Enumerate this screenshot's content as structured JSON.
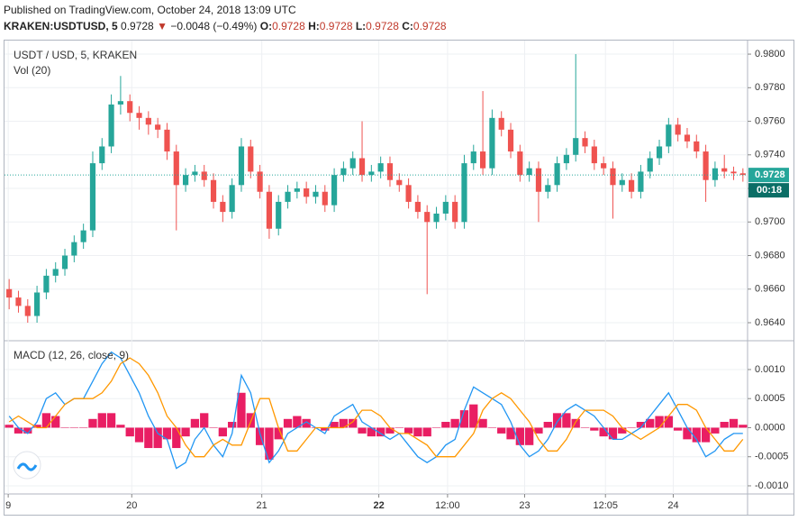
{
  "header": {
    "published": "Published on TradingView.com, October 24, 2018 13:09 UTC",
    "symbol": "KRAKEN:USDTUSD, 5",
    "last": "0.9728",
    "change": "−0.0048 (−0.49%)",
    "ohlc": [
      {
        "label": "O:",
        "value": "0.9728"
      },
      {
        "label": "H:",
        "value": "0.9728"
      },
      {
        "label": "L:",
        "value": "0.9728"
      },
      {
        "label": "C:",
        "value": "0.9728"
      }
    ]
  },
  "chart_data": [
    {
      "type": "candlestick",
      "title": "USDT / USD, 5, KRAKEN",
      "subtitle": "Vol (20)",
      "up_color": "#26a69a",
      "down_color": "#ef5350",
      "xlim": [
        0,
        80
      ],
      "ylim": [
        0.96298,
        0.98054
      ],
      "yticks": [
        {
          "value": 0.98,
          "label": "0.9800"
        },
        {
          "value": 0.978,
          "label": "0.9780"
        },
        {
          "value": 0.976,
          "label": "0.9760"
        },
        {
          "value": 0.974,
          "label": "0.9740"
        },
        {
          "value": 0.972,
          "label": "0.9720"
        },
        {
          "value": 0.97,
          "label": "0.9700"
        },
        {
          "value": 0.968,
          "label": "0.9680"
        },
        {
          "value": 0.966,
          "label": "0.9660"
        },
        {
          "value": 0.964,
          "label": "0.9640"
        }
      ],
      "grid": true,
      "last_price": 0.9728,
      "countdown": "00:18",
      "open": [
        0.966,
        0.9655,
        0.965,
        0.9644,
        0.9658,
        0.9668,
        0.9672,
        0.968,
        0.9688,
        0.9695,
        0.9735,
        0.9745,
        0.977,
        0.9772,
        0.9765,
        0.9762,
        0.9758,
        0.9755,
        0.9742,
        0.9722,
        0.9728,
        0.973,
        0.9725,
        0.9712,
        0.9706,
        0.9722,
        0.9745,
        0.973,
        0.9718,
        0.9696,
        0.9712,
        0.9718,
        0.972,
        0.9715,
        0.9718,
        0.971,
        0.9728,
        0.9732,
        0.9738,
        0.9728,
        0.973,
        0.9735,
        0.9725,
        0.9722,
        0.9712,
        0.9706,
        0.97,
        0.9705,
        0.9712,
        0.97,
        0.9735,
        0.9742,
        0.9732,
        0.9762,
        0.9755,
        0.9742,
        0.9728,
        0.9732,
        0.9718,
        0.9722,
        0.9735,
        0.974,
        0.975,
        0.9745,
        0.9735,
        0.9732,
        0.9722,
        0.9725,
        0.9718,
        0.973,
        0.9738,
        0.9745,
        0.9758,
        0.9752,
        0.9748,
        0.9742,
        0.9725,
        0.9732,
        0.973,
        0.9729
      ],
      "high": [
        0.9666,
        0.9659,
        0.9654,
        0.9662,
        0.9672,
        0.9676,
        0.9684,
        0.9692,
        0.9699,
        0.9742,
        0.975,
        0.9776,
        0.9787,
        0.9776,
        0.9769,
        0.9766,
        0.9762,
        0.9759,
        0.9746,
        0.9732,
        0.9734,
        0.9734,
        0.9729,
        0.9716,
        0.9726,
        0.975,
        0.9749,
        0.9734,
        0.9722,
        0.9716,
        0.9722,
        0.9724,
        0.9724,
        0.9722,
        0.9722,
        0.9732,
        0.9736,
        0.9742,
        0.976,
        0.9734,
        0.9739,
        0.9739,
        0.9729,
        0.9726,
        0.9716,
        0.971,
        0.9709,
        0.9716,
        0.9716,
        0.974,
        0.9746,
        0.9778,
        0.9767,
        0.9766,
        0.9759,
        0.9746,
        0.9736,
        0.9736,
        0.9726,
        0.9739,
        0.9744,
        0.98,
        0.9754,
        0.9749,
        0.9739,
        0.9736,
        0.9729,
        0.9729,
        0.9734,
        0.9742,
        0.9749,
        0.9762,
        0.9762,
        0.9756,
        0.9752,
        0.9746,
        0.9736,
        0.974,
        0.9733,
        0.9732
      ],
      "low": [
        0.9648,
        0.9646,
        0.964,
        0.964,
        0.9654,
        0.9664,
        0.9668,
        0.9676,
        0.9684,
        0.9691,
        0.9731,
        0.9741,
        0.9764,
        0.976,
        0.9755,
        0.9752,
        0.975,
        0.9737,
        0.9695,
        0.9718,
        0.9724,
        0.9721,
        0.9708,
        0.97,
        0.9702,
        0.9718,
        0.9726,
        0.9714,
        0.969,
        0.9692,
        0.9708,
        0.9714,
        0.9711,
        0.9711,
        0.9706,
        0.9706,
        0.9724,
        0.9728,
        0.9724,
        0.9724,
        0.9726,
        0.9721,
        0.9718,
        0.9708,
        0.9702,
        0.9657,
        0.9696,
        0.9701,
        0.9696,
        0.9696,
        0.9731,
        0.9728,
        0.9728,
        0.9751,
        0.9738,
        0.9724,
        0.9724,
        0.97,
        0.9714,
        0.9718,
        0.9731,
        0.9736,
        0.9741,
        0.9731,
        0.9728,
        0.9702,
        0.9718,
        0.9714,
        0.9714,
        0.9726,
        0.9734,
        0.9741,
        0.9748,
        0.9744,
        0.9738,
        0.9712,
        0.9721,
        0.9726,
        0.9725,
        0.9724
      ],
      "close": [
        0.9655,
        0.965,
        0.9644,
        0.9658,
        0.9668,
        0.9672,
        0.968,
        0.9688,
        0.9695,
        0.9735,
        0.9745,
        0.977,
        0.9772,
        0.9765,
        0.9762,
        0.9758,
        0.9755,
        0.9742,
        0.9722,
        0.9728,
        0.973,
        0.9725,
        0.9712,
        0.9706,
        0.9722,
        0.9745,
        0.973,
        0.9718,
        0.9696,
        0.9712,
        0.9718,
        0.972,
        0.9715,
        0.9718,
        0.971,
        0.9728,
        0.9732,
        0.9738,
        0.9728,
        0.973,
        0.9735,
        0.9725,
        0.9722,
        0.9712,
        0.9706,
        0.97,
        0.9705,
        0.9712,
        0.97,
        0.9735,
        0.9742,
        0.9732,
        0.9762,
        0.9755,
        0.9742,
        0.9728,
        0.9732,
        0.9718,
        0.9722,
        0.9735,
        0.974,
        0.975,
        0.9745,
        0.9735,
        0.9732,
        0.9722,
        0.9725,
        0.9718,
        0.973,
        0.9738,
        0.9745,
        0.9758,
        0.9752,
        0.9748,
        0.9742,
        0.9725,
        0.9732,
        0.973,
        0.9729,
        0.9728
      ]
    },
    {
      "type": "macd",
      "title": "MACD (12, 26, close, 9)",
      "xlim": [
        0,
        80
      ],
      "ylim": [
        -0.00114,
        0.00148
      ],
      "yticks": [
        {
          "value": 0.001,
          "label": "0.0010"
        },
        {
          "value": 0.0005,
          "label": "0.0005"
        },
        {
          "value": 0,
          "label": "0.0000"
        },
        {
          "value": -0.0005,
          "label": "-0.0005"
        },
        {
          "value": -0.001,
          "label": "-0.0010"
        }
      ],
      "xticks": [
        {
          "value": 0.4,
          "label": "9"
        },
        {
          "value": 13.7,
          "label": "20"
        },
        {
          "value": 27.7,
          "label": "21"
        },
        {
          "value": 40.3,
          "label": "22"
        },
        {
          "value": 47.7,
          "label": "12:00"
        },
        {
          "value": 56,
          "label": "23"
        },
        {
          "value": 64.7,
          "label": "12:05"
        },
        {
          "value": 72,
          "label": "24"
        }
      ],
      "grid": true,
      "series": [
        {
          "color": "#2196f3",
          "values": [
            0.0002,
            0,
            -0.0001,
            0.0001,
            0.0005,
            0.0006,
            0.0004,
            0.0005,
            0.0005,
            0.0008,
            0.0011,
            0.0013,
            0.0012,
            0.0009,
            0.0006,
            0.0002,
            -0.0001,
            -0.0002,
            -0.0007,
            -0.0006,
            -0.0002,
            0,
            -0.0003,
            -0.0005,
            -0.0001,
            0.0009,
            0.0006,
            -0.0001,
            -0.0006,
            -0.0004,
            -0.0001,
            0,
            0.0001,
            0,
            -0.0001,
            0.0002,
            0.0003,
            0.0004,
            0.0001,
            0,
            -0.0001,
            -0.0002,
            -0.0001,
            -0.0003,
            -0.0005,
            -0.0006,
            -0.0005,
            -0.0003,
            -0.0002,
            0.0003,
            0.0007,
            0.0006,
            0.0005,
            0.0004,
            0.0001,
            -0.0003,
            -0.0005,
            -0.0004,
            -0.0002,
            0.0001,
            0.0003,
            0.0004,
            0.0003,
            0.0002,
            0,
            -0.0002,
            -0.0002,
            -0.0001,
            0,
            0.0002,
            0.0004,
            0.0006,
            0.0003,
            0,
            -0.0002,
            -0.0005,
            -0.0004,
            -0.0002,
            -0.0001,
            -0.0001
          ]
        },
        {
          "color": "#ff9800",
          "values": [
            0.0001,
            0.0002,
            0.0001,
            0,
            0,
            0.0002,
            0.0004,
            0.0005,
            0.0005,
            0.0005,
            0.0006,
            0.0008,
            0.0011,
            0.0012,
            0.0011,
            0.0009,
            0.0006,
            0.0002,
            0,
            -0.0003,
            -0.0005,
            -0.0005,
            -0.0003,
            -0.0002,
            -0.0003,
            -0.0003,
            0.0001,
            0.0005,
            0.0005,
            0,
            -0.0004,
            -0.0004,
            -0.0002,
            0,
            0,
            0,
            0,
            0.0001,
            0.0003,
            0.0003,
            0.0002,
            0,
            -0.0001,
            -0.0001,
            -0.0002,
            -0.0003,
            -0.0005,
            -0.0005,
            -0.0005,
            -0.0003,
            -0.0001,
            0.0003,
            0.0005,
            0.0006,
            0.0005,
            0.0003,
            0.0001,
            -0.0002,
            -0.0004,
            -0.0004,
            -0.0002,
            0.0001,
            0.0003,
            0.0003,
            0.0003,
            0.0002,
            0,
            -0.0001,
            -0.0002,
            -0.0001,
            0,
            0.0002,
            0.0004,
            0.0004,
            0.0003,
            0,
            -0.0002,
            -0.0004,
            -0.0004,
            -0.0002
          ]
        }
      ],
      "histogram": {
        "color": "#e91e63",
        "values": [
          5e-05,
          -0.0001,
          -0.0001,
          5e-05,
          0.00025,
          0.0002,
          0,
          0,
          0,
          0.00015,
          0.00025,
          0.00025,
          5e-05,
          -0.00015,
          -0.00025,
          -0.00035,
          -0.00035,
          -0.0002,
          -0.00035,
          -0.00015,
          0.00015,
          0.00025,
          0,
          -0.00015,
          0.0001,
          0.0006,
          0.00025,
          -0.0003,
          -0.00055,
          -0.0002,
          0.00015,
          0.0002,
          0.00015,
          0,
          -5e-05,
          0.0001,
          0.00015,
          0.00015,
          -0.0001,
          -0.00015,
          -0.00015,
          -0.0001,
          0,
          -0.0001,
          -0.00015,
          -0.00015,
          0,
          0.0001,
          0.00015,
          0.0003,
          0.0004,
          0.00015,
          0,
          -0.0001,
          -0.0002,
          -0.0003,
          -0.0003,
          -0.0001,
          0.0001,
          0.00025,
          0.00025,
          0.00015,
          0,
          -5e-05,
          -0.00015,
          -0.0002,
          -0.0001,
          0,
          0.0001,
          0.00015,
          0.0002,
          0.0002,
          -5e-05,
          -0.0002,
          -0.00025,
          -0.00025,
          -0.0001,
          0.0001,
          0.00015,
          5e-05
        ]
      }
    }
  ]
}
